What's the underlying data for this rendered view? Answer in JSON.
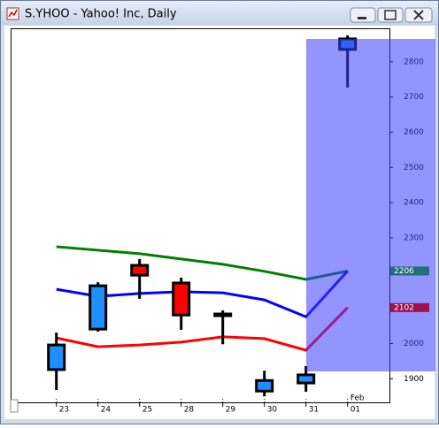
{
  "chart_data": {
    "type": "candlestick",
    "title": "S.YHOO - Yahoo! Inc, Daily",
    "categories": [
      "23",
      "24",
      "25",
      "28",
      "29",
      "30",
      "31",
      "01"
    ],
    "annotations": [
      {
        "text": "Feb",
        "at": 7
      }
    ],
    "open": [
      1926,
      2041,
      2222,
      2172,
      2084,
      1865,
      1888,
      2835
    ],
    "high": [
      2031,
      2174,
      2240,
      2187,
      2094,
      1923,
      1936,
      2875
    ],
    "low": [
      1868,
      2034,
      2127,
      2039,
      1998,
      1850,
      1863,
      2727
    ],
    "close": [
      1996,
      2164,
      2194,
      2081,
      2082,
      1895,
      1911,
      2865
    ],
    "up_color": "#1e8fff",
    "down_color": "#ff0000",
    "series": [
      {
        "color": "#008000",
        "values": [
          2275,
          2265,
          2255,
          2240,
          2225,
          2205,
          2182,
          2206
        ]
      },
      {
        "color": "#0000ff",
        "values": [
          2154,
          2134,
          2142,
          2147,
          2144,
          2124,
          2076,
          2206
        ]
      },
      {
        "color": "#ff0000",
        "values": [
          2016,
          1991,
          1996,
          2004,
          2019,
          2014,
          1981,
          2102
        ]
      }
    ],
    "last_value_labels": [
      {
        "series": 0,
        "color": "#1f6f7f"
      },
      {
        "series": 2,
        "color": "#a0104f"
      }
    ],
    "ylim": [
      1833,
      2895
    ],
    "yticks": [
      1900,
      2000,
      2100,
      2200,
      2300,
      2400,
      2500,
      2600,
      2700,
      2800
    ],
    "grid": false
  }
}
